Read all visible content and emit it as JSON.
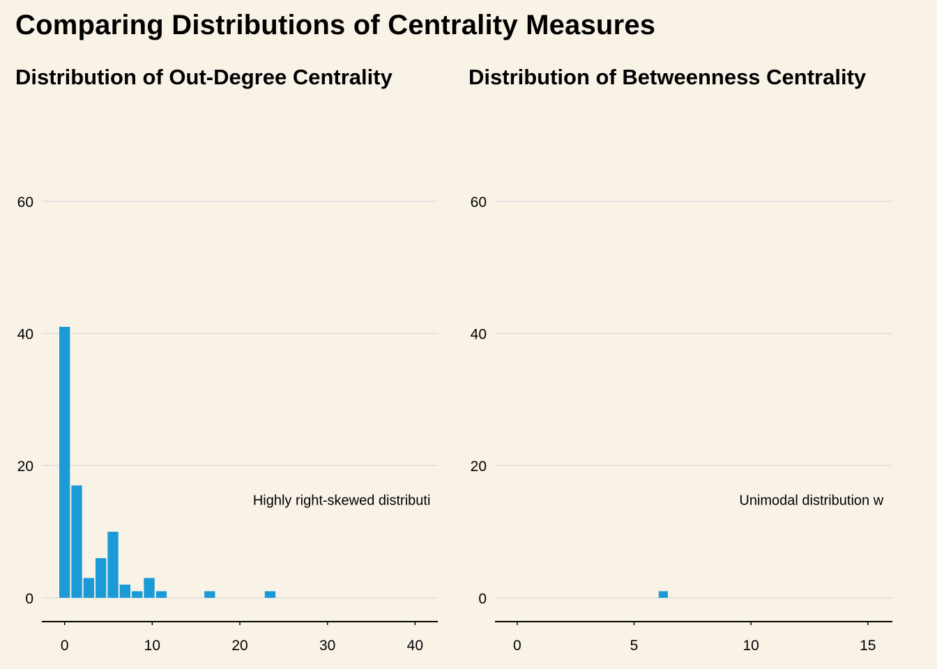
{
  "figure": {
    "title": "Comparing Distributions of Centrality Measures",
    "background": "#f9f2e7",
    "bar_color": "#1a9ad6",
    "grid_color": "#dedede"
  },
  "chart_data": [
    {
      "type": "bar",
      "title": "Distribution of Out-Degree Centrality",
      "xlabel": "",
      "ylabel": "",
      "xlim": [
        -2.6,
        42.6
      ],
      "ylim": [
        -3.6,
        72
      ],
      "x_ticks": [
        0,
        10,
        20,
        30,
        40
      ],
      "y_ticks": [
        0,
        20,
        40,
        60
      ],
      "bin_width": 1.38,
      "grid": true,
      "bins": [
        {
          "x": 0.0,
          "count": 41
        },
        {
          "x": 1.38,
          "count": 17
        },
        {
          "x": 2.76,
          "count": 3
        },
        {
          "x": 4.14,
          "count": 6
        },
        {
          "x": 5.52,
          "count": 10
        },
        {
          "x": 6.9,
          "count": 2
        },
        {
          "x": 8.28,
          "count": 1
        },
        {
          "x": 9.66,
          "count": 3
        },
        {
          "x": 11.04,
          "count": 1
        },
        {
          "x": 16.56,
          "count": 1
        },
        {
          "x": 23.46,
          "count": 1
        }
      ],
      "annotation": {
        "text": "Highly right-skewed distributi",
        "x": 21.5,
        "y": 14.8
      }
    },
    {
      "type": "bar",
      "title": "Distribution of Betweenness Centrality",
      "xlabel": "",
      "ylabel": "",
      "xlim": [
        -0.95,
        16.05
      ],
      "ylim": [
        -3.6,
        72
      ],
      "x_ticks": [
        0,
        5,
        10,
        15
      ],
      "y_ticks": [
        0,
        20,
        40,
        60
      ],
      "bin_width": 0.45,
      "grid": true,
      "bins": [
        {
          "x": 6.25,
          "count": 1
        }
      ],
      "annotation": {
        "text": "Unimodal distribution w",
        "x": 9.5,
        "y": 14.8
      }
    }
  ]
}
